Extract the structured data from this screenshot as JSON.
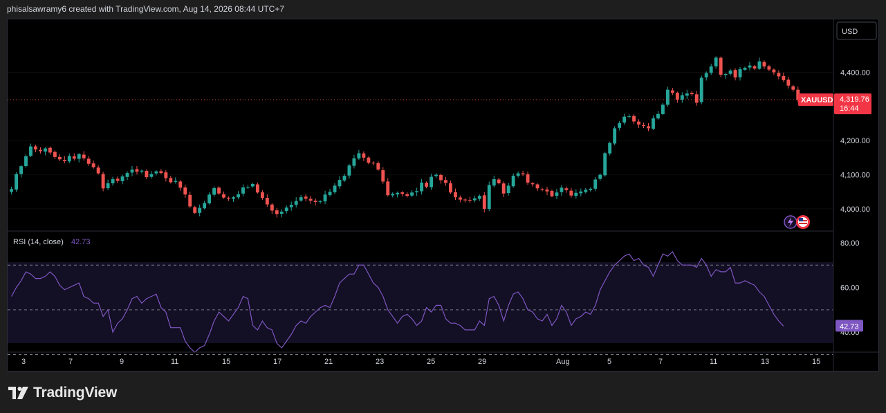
{
  "header": {
    "attribution": "phisalsawramy6 created with TradingView.com, Aug 14, 2026 08:44 UTC+7"
  },
  "brand": {
    "name": "TradingView"
  },
  "colors": {
    "up": "#26a69a",
    "down": "#ef5350",
    "rsi": "#7e57c2",
    "price_label": "#f23645",
    "background": "#000000",
    "page": "#1e1e1e"
  },
  "chart_data": [
    {
      "type": "candlestick",
      "symbol": "XAUUSD",
      "currency": "USD",
      "last_price": "4,319.76",
      "countdown": "16:44",
      "x_ticks": [
        "3",
        "7",
        "9",
        "11",
        "15",
        "17",
        "21",
        "23",
        "25",
        "29",
        "Aug",
        "5",
        "7",
        "11",
        "13",
        "15"
      ],
      "y_ticks": [
        "4,400.00",
        "4,200.00",
        "4,100.00",
        "4,000.00"
      ],
      "ylim": [
        3935,
        4555
      ],
      "icons": [
        "flash-icon",
        "us-flag-icon"
      ],
      "ohlc_close": [
        4058,
        4102,
        4125,
        4154,
        4183,
        4174,
        4169,
        4177,
        4165,
        4152,
        4145,
        4140,
        4155,
        4147,
        4160,
        4148,
        4132,
        4122,
        4104,
        4060,
        4075,
        4087,
        4082,
        4095,
        4105,
        4115,
        4109,
        4112,
        4093,
        4102,
        4110,
        4105,
        4090,
        4078,
        4082,
        4062,
        4042,
        4007,
        3988,
        4003,
        4017,
        4042,
        4061,
        4045,
        4033,
        4030,
        4034,
        4043,
        4063,
        4064,
        4073,
        4048,
        4032,
        4013,
        3995,
        3985,
        3992,
        4004,
        4012,
        4023,
        4034,
        4030,
        4024,
        4020,
        4022,
        4042,
        4050,
        4068,
        4085,
        4097,
        4127,
        4148,
        4163,
        4150,
        4135,
        4134,
        4115,
        4080,
        4040,
        4044,
        4047,
        4044,
        4038,
        4048,
        4052,
        4077,
        4065,
        4094,
        4100,
        4084,
        4076,
        4048,
        4034,
        4027,
        4025,
        4025,
        4031,
        4038,
        4000,
        4070,
        4087,
        4075,
        4045,
        4068,
        4097,
        4104,
        4101,
        4077,
        4072,
        4060,
        4057,
        4051,
        4037,
        4048,
        4062,
        4055,
        4039,
        4047,
        4051,
        4056,
        4059,
        4086,
        4100,
        4163,
        4193,
        4236,
        4251,
        4270,
        4271,
        4256,
        4247,
        4243,
        4236,
        4265,
        4278,
        4305,
        4349,
        4340,
        4320,
        4333,
        4338,
        4336,
        4311,
        4384,
        4398,
        4417,
        4443,
        4393,
        4395,
        4405,
        4385,
        4409,
        4413,
        4420,
        4411,
        4432,
        4417,
        4408,
        4400,
        4388,
        4377,
        4361,
        4349,
        4319.76
      ]
    },
    {
      "type": "line",
      "title": "RSI (14, close)",
      "value": "42.73",
      "y_ticks": [
        "80.00",
        "60.00",
        "40.00"
      ],
      "ylim": [
        32,
        84
      ],
      "levels": [
        70,
        50,
        30
      ],
      "values": [
        56,
        60,
        63,
        67,
        66,
        64,
        64,
        65,
        67,
        65,
        61,
        59,
        60,
        61,
        62,
        56,
        55,
        53,
        53,
        47,
        50,
        40,
        44,
        46,
        50,
        55,
        56,
        53,
        55,
        56,
        57,
        51,
        49,
        42,
        42,
        42,
        36,
        33,
        31,
        33,
        34,
        39,
        45,
        49,
        47,
        45,
        48,
        51,
        56,
        55,
        43,
        41,
        45,
        42,
        41,
        35,
        33,
        36,
        39,
        43,
        45,
        44,
        47,
        49,
        51,
        52,
        51,
        56,
        62,
        64,
        66,
        66,
        70,
        70,
        66,
        62,
        60,
        56,
        50,
        47,
        44,
        47,
        48,
        46,
        43,
        45,
        51,
        49,
        52,
        52,
        46,
        44,
        44,
        43,
        41,
        41,
        41,
        45,
        43,
        55,
        56,
        52,
        45,
        52,
        57,
        58,
        55,
        50,
        49,
        46,
        45,
        48,
        43,
        46,
        52,
        49,
        43,
        46,
        47,
        49,
        48,
        52,
        59,
        63,
        67,
        70,
        72,
        74,
        75,
        72,
        73,
        70,
        69,
        65,
        70,
        75,
        74,
        76,
        72,
        70,
        70,
        70,
        69,
        73,
        70,
        65,
        68,
        67,
        67,
        69,
        62,
        62,
        63,
        62,
        61,
        58,
        56,
        52,
        48,
        45,
        42.73
      ]
    }
  ]
}
